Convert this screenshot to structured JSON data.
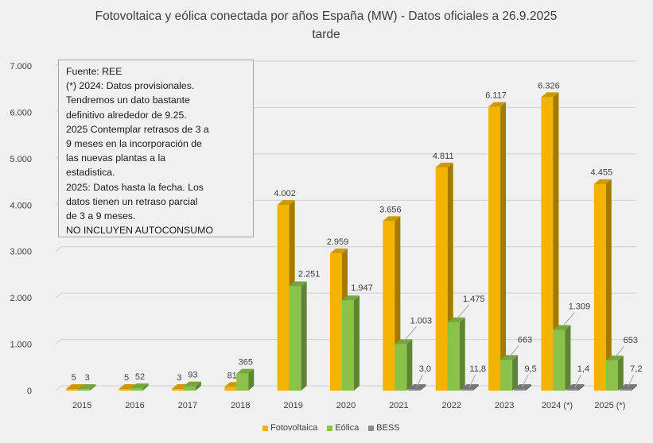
{
  "chart_data": {
    "type": "bar",
    "title": "Fotovoltaica y eólica conectada por años España (MW) - Datos oficiales a 26.9.2025",
    "title_line2": "tarde",
    "xlabel": "",
    "ylabel": "",
    "ylim": [
      0,
      7000
    ],
    "yticks": [
      0,
      1000,
      2000,
      3000,
      4000,
      5000,
      6000,
      7000
    ],
    "ytick_labels": [
      "0",
      "1.000",
      "2.000",
      "3.000",
      "4.000",
      "5.000",
      "6.000",
      "7.000"
    ],
    "grid": true,
    "legend_position": "bottom",
    "categories": [
      "2015",
      "2016",
      "2017",
      "2018",
      "2019",
      "2020",
      "2021",
      "2022",
      "2023",
      "2024 (*)",
      "2025 (*)"
    ],
    "series": [
      {
        "name": "Fotovoltaica",
        "color": "#f2b400",
        "values": [
          5,
          5,
          3,
          81,
          4002,
          2959,
          3656,
          4811,
          6117,
          6326,
          4455
        ],
        "labels": [
          "5",
          "5",
          "3",
          "81",
          "4.002",
          "2.959",
          "3.656",
          "4.811",
          "6.117",
          "6.326",
          "4.455"
        ]
      },
      {
        "name": "Eólica",
        "color": "#8bc34a",
        "values": [
          3,
          52,
          93,
          365,
          2251,
          1947,
          1003,
          1475,
          663,
          1309,
          653
        ],
        "labels": [
          "3",
          "52",
          "93",
          "365",
          "2.251",
          "1.947",
          "1.003",
          "1.475",
          "663",
          "1.309",
          "653"
        ]
      },
      {
        "name": "BESS",
        "color": "#8c8c8c",
        "values": [
          null,
          null,
          null,
          null,
          null,
          null,
          3.0,
          11.8,
          9.5,
          1.4,
          7.2
        ],
        "labels": [
          null,
          null,
          null,
          null,
          null,
          null,
          "3,0",
          "11,8",
          "9,5",
          "1,4",
          "7,2"
        ]
      }
    ],
    "annotation": [
      "Fuente: REE",
      "(*) 2024: Datos provisionales.",
      "Tendremos un dato bastante",
      "definitivo alrededor de 9.25.",
      "2025 Contemplar retrasos de 3 a",
      "9 meses en la incorporación de",
      "las nuevas plantas a la",
      "estadistica.",
      "2025: Datos hasta la fecha. Los",
      "datos tienen un retraso parcial",
      "de 3 a 9 meses.",
      "NO INCLUYEN AUTOCONSUMO"
    ]
  }
}
